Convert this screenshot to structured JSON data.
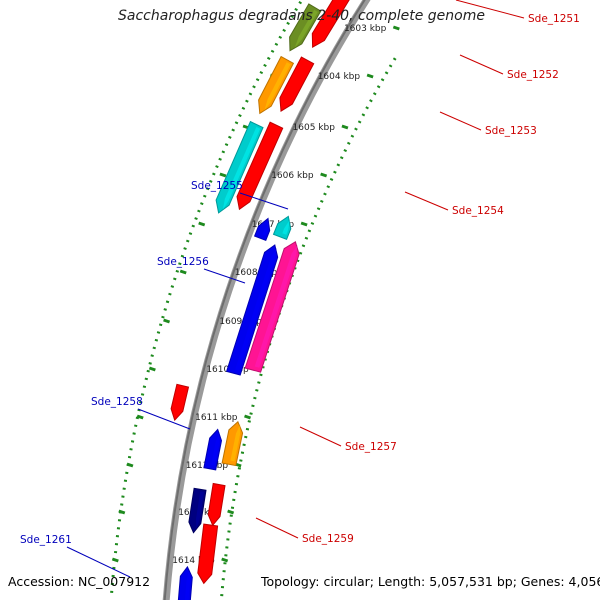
{
  "title": "Saccharophagus degradans 2-40, complete genome",
  "footer": {
    "accession": "Accession: NC_007912",
    "summary": "Topology: circular; Length: 5,057,531 bp; Genes: 4,056"
  },
  "colors": {
    "backbone": "#8c8c8c",
    "tick": "#1e8a1e",
    "label_forward": "#cc0000",
    "label_reverse": "#0000bb",
    "red": "#ff0000",
    "olive": "#6b8e23",
    "orange": "#ff9900",
    "cyan": "#00cccc",
    "magenta": "#ff1493",
    "blue": "#0000ee",
    "navy": "#000080"
  },
  "scale_labels": [
    "1603 kbp",
    "1604 kbp",
    "1605 kbp",
    "1606 kbp",
    "1607 kbp",
    "1608 kbp",
    "1609 kbp",
    "1610 kbp",
    "1611 kbp",
    "1612 kbp",
    "1613 kbp",
    "1614 kbp"
  ],
  "gene_labels": [
    {
      "text": "Sde_1251",
      "strand": "forward"
    },
    {
      "text": "Sde_1252",
      "strand": "forward"
    },
    {
      "text": "Sde_1253",
      "strand": "forward"
    },
    {
      "text": "Sde_1254",
      "strand": "forward"
    },
    {
      "text": "Sde_1255",
      "strand": "reverse"
    },
    {
      "text": "Sde_1256",
      "strand": "reverse"
    },
    {
      "text": "Sde_1257",
      "strand": "forward"
    },
    {
      "text": "Sde_1258",
      "strand": "reverse"
    },
    {
      "text": "Sde_1259",
      "strand": "forward"
    },
    {
      "text": "Sde_1261",
      "strand": "reverse"
    }
  ],
  "features": [
    {
      "name": "Sde_1251-arrow",
      "color": "red",
      "direction": "down"
    },
    {
      "name": "Sde_1252-arrow",
      "color": "olive",
      "direction": "down"
    },
    {
      "name": "Sde_1252-red-arrow",
      "color": "red",
      "direction": "down"
    },
    {
      "name": "Sde_1253-arrow",
      "color": "orange",
      "direction": "down"
    },
    {
      "name": "Sde_1254-arrow",
      "color": "cyan",
      "direction": "down"
    },
    {
      "name": "Sde_1254-red-arrow",
      "color": "red",
      "direction": "down"
    },
    {
      "name": "Sde_1255-arrow",
      "color": "cyan",
      "direction": "up"
    },
    {
      "name": "Sde_1255-blue-arrow",
      "color": "blue",
      "direction": "up"
    },
    {
      "name": "Sde_1256-arrow",
      "color": "magenta",
      "direction": "up"
    },
    {
      "name": "Sde_1256-blue-arrow",
      "color": "blue",
      "direction": "up"
    },
    {
      "name": "Sde_1257-arrow",
      "color": "red",
      "direction": "down"
    },
    {
      "name": "Sde_1258-arrow",
      "color": "orange",
      "direction": "up"
    },
    {
      "name": "Sde_1258-blue-arrow",
      "color": "blue",
      "direction": "up"
    },
    {
      "name": "Sde_1259-arrow",
      "color": "navy",
      "direction": "down"
    },
    {
      "name": "Sde_1259-red-arrow",
      "color": "red",
      "direction": "down"
    },
    {
      "name": "Sde_1260-red-arrow",
      "color": "red",
      "direction": "down"
    },
    {
      "name": "Sde_1261-arrow",
      "color": "blue",
      "direction": "up"
    }
  ]
}
